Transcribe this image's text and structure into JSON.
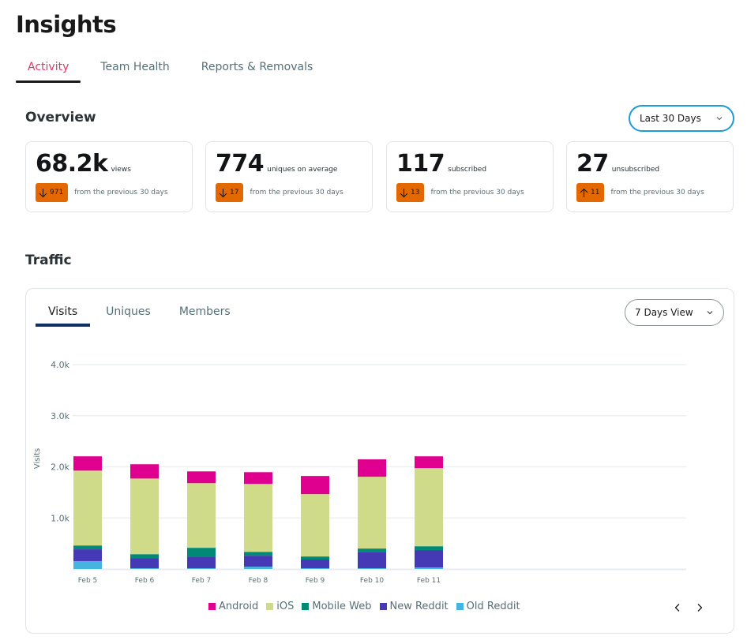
{
  "page": {
    "title": "Insights"
  },
  "main_tabs": [
    {
      "label": "Activity",
      "active": true
    },
    {
      "label": "Team Health",
      "active": false
    },
    {
      "label": "Reports & Removals",
      "active": false
    }
  ],
  "overview": {
    "title": "Overview",
    "range_select": {
      "value": "Last 30 Days",
      "icon": "chevron-down-icon"
    },
    "cards": [
      {
        "value": "68.2k",
        "label": "views",
        "delta": "971",
        "direction": "down",
        "note": "from the previous 30 days"
      },
      {
        "value": "774",
        "label": "uniques on average",
        "delta": "17",
        "direction": "down",
        "note": "from the previous 30 days"
      },
      {
        "value": "117",
        "label": "subscribed",
        "delta": "13",
        "direction": "down",
        "note": "from the previous 30 days"
      },
      {
        "value": "27",
        "label": "unsubscribed",
        "delta": "11",
        "direction": "up",
        "note": "from the previous 30 days"
      }
    ],
    "badge_color": "#e36800"
  },
  "traffic": {
    "title": "Traffic",
    "tabs": [
      {
        "label": "Visits",
        "active": true
      },
      {
        "label": "Uniques",
        "active": false
      },
      {
        "label": "Members",
        "active": false
      }
    ],
    "view_select": {
      "value": "7 Days View",
      "icon": "chevron-down-icon"
    },
    "pager": {
      "prev_icon": "chevron-left-icon",
      "next_icon": "chevron-right-icon"
    }
  },
  "chart_data": {
    "type": "bar",
    "stacked": true,
    "title": "",
    "xlabel": "",
    "ylabel": "Visits",
    "ylim": [
      0,
      4000
    ],
    "yticks": [
      1000,
      2000,
      3000,
      4000
    ],
    "ytick_labels": [
      "1.0k",
      "2.0k",
      "3.0k",
      "4.0k"
    ],
    "grid": true,
    "legend_position": "bottom-center",
    "categories": [
      "Feb 5",
      "Feb 6",
      "Feb 7",
      "Feb 8",
      "Feb 9",
      "Feb 10",
      "Feb 11"
    ],
    "series": [
      {
        "name": "Old Reddit",
        "color": "#46b4e0",
        "values": [
          155,
          15,
          15,
          45,
          15,
          15,
          30
        ]
      },
      {
        "name": "New Reddit",
        "color": "#4539b5",
        "values": [
          230,
          200,
          230,
          215,
          170,
          310,
          340
        ]
      },
      {
        "name": "Mobile Web",
        "color": "#008a76",
        "values": [
          75,
          75,
          170,
          75,
          60,
          75,
          75
        ]
      },
      {
        "name": "iOS",
        "color": "#d0db89",
        "values": [
          1465,
          1480,
          1265,
          1330,
          1220,
          1405,
          1530
        ]
      },
      {
        "name": "Android",
        "color": "#e0008f",
        "values": [
          280,
          280,
          230,
          230,
          355,
          340,
          230
        ]
      }
    ],
    "legend_order": [
      "Android",
      "iOS",
      "Mobile Web",
      "New Reddit",
      "Old Reddit"
    ]
  }
}
